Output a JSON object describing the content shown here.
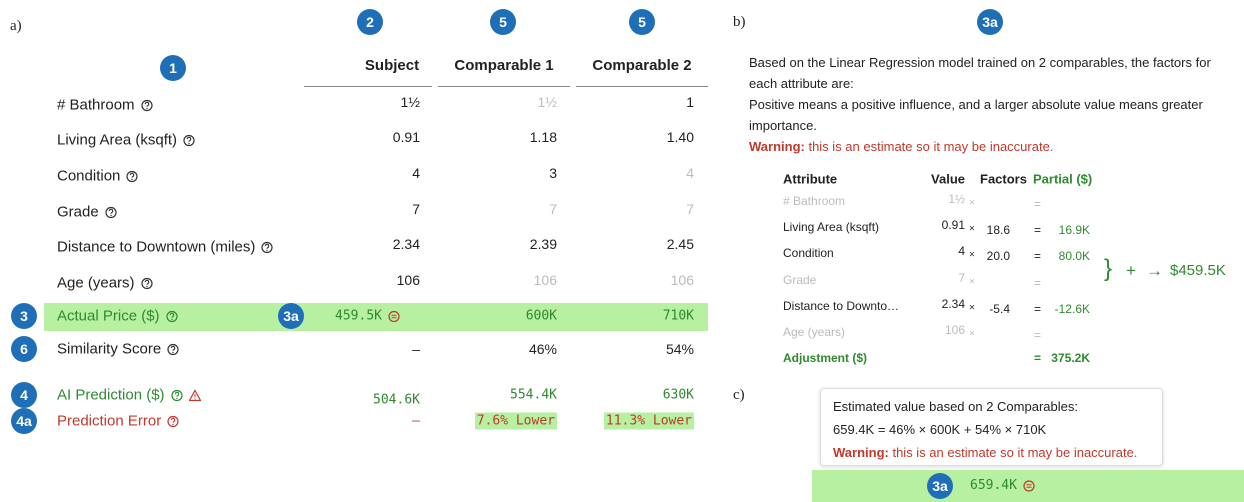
{
  "panels": [
    "a)",
    "b)",
    "c)"
  ],
  "comparison": {
    "badges": {
      "attributes": "1",
      "subject": "2",
      "comp1": "5",
      "comp2": "5"
    },
    "headers": [
      "Subject",
      "Comparable 1",
      "Comparable 2"
    ],
    "rows": [
      {
        "label": "# Bathroom",
        "values": [
          "1½",
          "1½",
          "1"
        ],
        "muted": [
          false,
          true,
          false
        ]
      },
      {
        "label": "Living Area (ksqft)",
        "values": [
          "0.91",
          "1.18",
          "1.40"
        ],
        "muted": [
          false,
          false,
          false
        ]
      },
      {
        "label": "Condition",
        "values": [
          "4",
          "3",
          "4"
        ],
        "muted": [
          false,
          false,
          true
        ]
      },
      {
        "label": "Grade",
        "values": [
          "7",
          "7",
          "7"
        ],
        "muted": [
          false,
          true,
          true
        ]
      },
      {
        "label": "Distance to Downtown (miles)",
        "values": [
          "2.34",
          "2.39",
          "2.45"
        ],
        "muted": [
          false,
          false,
          false
        ]
      },
      {
        "label": "Age (years)",
        "values": [
          "106",
          "106",
          "106"
        ],
        "muted": [
          false,
          true,
          true
        ]
      }
    ],
    "actual_price": {
      "badge": "3",
      "value_badge": "3a",
      "label": "Actual Price ($)",
      "values": [
        "459.5K",
        "600K",
        "710K"
      ]
    },
    "similarity": {
      "badge": "6",
      "label": "Similarity Score",
      "values": [
        "–",
        "46%",
        "54%"
      ]
    },
    "ai_prediction": {
      "badge": "4",
      "label": "AI Prediction ($)",
      "values": [
        "504.6K",
        "554.4K",
        "630K"
      ]
    },
    "prediction_error": {
      "badge": "4a",
      "label": "Prediction Error",
      "values": [
        "–",
        "7.6% Lower",
        "11.3% Lower"
      ]
    }
  },
  "regression": {
    "badge": "3a",
    "intro": "Based on the Linear Regression model trained on 2 comparables, the factors for each attribute are:",
    "note": "Positive means a positive influence, and a larger absolute value means greater importance.",
    "warning_label": "Warning:",
    "warning_text": "this is an estimate so it may be inaccurate.",
    "columns": [
      "Attribute",
      "Value",
      "Factors",
      "Partial ($)"
    ],
    "rows": [
      {
        "attribute": "# Bathroom",
        "value": "1½",
        "times": "×",
        "equals": "=",
        "active": false
      },
      {
        "attribute": "Living Area (ksqft)",
        "value": "0.91",
        "times": "×",
        "factor": "18.6",
        "equals": "=",
        "partial": "16.9K",
        "active": true
      },
      {
        "attribute": "Condition",
        "value": "4",
        "times": "×",
        "factor": "20.0",
        "equals": "=",
        "partial": "80.0K",
        "active": true
      },
      {
        "attribute": "Grade",
        "value": "7",
        "times": "×",
        "equals": "=",
        "active": false
      },
      {
        "attribute": "Distance to Downto…",
        "value": "2.34",
        "times": "×",
        "factor": "-5.4",
        "equals": "=",
        "partial": "-12.6K",
        "active": true
      },
      {
        "attribute": "Age (years)",
        "value": "106",
        "times": "×",
        "equals": "=",
        "active": false
      }
    ],
    "adjustment": {
      "label": "Adjustment ($)",
      "equals": "=",
      "value": "375.2K"
    },
    "sum": {
      "brace": "}",
      "plus": "+",
      "arrow": "→",
      "total": "$459.5K"
    }
  },
  "estimate": {
    "lines": [
      "Estimated value based on 2 Comparables:",
      "659.4K = 46% × 600K + 54% × 710K"
    ],
    "warning_label": "Warning:",
    "warning_text": "this is an estimate so it may be inaccurate.",
    "badge": "3a",
    "value": "659.4K"
  }
}
